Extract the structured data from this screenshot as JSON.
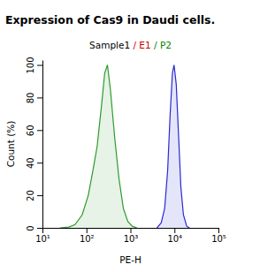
{
  "chart_data": {
    "type": "area",
    "title": "Expression of Cas9 in Daudi cells.",
    "subtitle": [
      {
        "text": "Sample1",
        "color": "#000000"
      },
      {
        "text": " / E1",
        "color": "#cc0000"
      },
      {
        "text": " / P2",
        "color": "#008000"
      }
    ],
    "x_label": "PE-H",
    "y_label": "Count (%)",
    "log": "x",
    "xlim": [
      10,
      100000
    ],
    "xticks": [
      {
        "value": 10,
        "label": "10¹"
      },
      {
        "value": 100,
        "label": "10²"
      },
      {
        "value": 1000,
        "label": "10³"
      },
      {
        "value": 10000,
        "label": "10⁴"
      },
      {
        "value": 100000,
        "label": "10⁵"
      }
    ],
    "ylim": [
      0,
      103
    ],
    "yticks": [
      0,
      20,
      40,
      60,
      80,
      100
    ],
    "series": [
      {
        "name": "P2",
        "color": "#2e9a2e",
        "x": [
          25,
          40,
          55,
          80,
          110,
          140,
          175,
          220,
          260,
          300,
          350,
          440,
          550,
          690,
          870,
          1100,
          1400
        ],
        "values": [
          0,
          0.5,
          2,
          8,
          20,
          35,
          50,
          75,
          95,
          100,
          85,
          55,
          30,
          12,
          4,
          1,
          0
        ]
      },
      {
        "name": "E1",
        "color": "#2a2ad4",
        "x": [
          4000,
          5000,
          6000,
          7000,
          8000,
          9000,
          9800,
          11000,
          12500,
          14000,
          16000,
          19000,
          22000
        ],
        "values": [
          0,
          3,
          12,
          35,
          70,
          95,
          100,
          88,
          55,
          25,
          8,
          1,
          0
        ]
      }
    ]
  }
}
